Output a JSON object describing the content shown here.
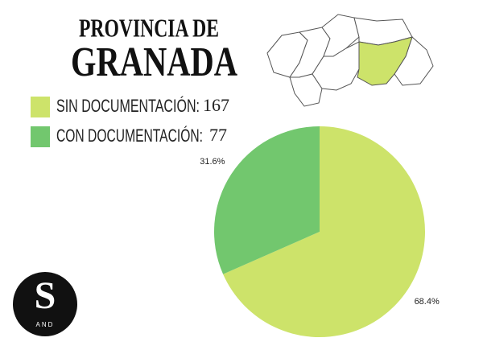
{
  "chart_data": {
    "type": "pie",
    "title": "PROVINCIA DE",
    "subtitle": "GRANADA",
    "categories": [
      "SIN DOCUMENTACIÓN:",
      "CON DOCUMENTACIÓN:"
    ],
    "counts": [
      167,
      77
    ],
    "values": [
      68.4,
      31.6
    ],
    "value_labels": [
      "68.4%",
      "31.6%"
    ],
    "colors": [
      "#cde36a",
      "#72c76e"
    ]
  },
  "logo": {
    "letter": "S",
    "text": "AND"
  }
}
